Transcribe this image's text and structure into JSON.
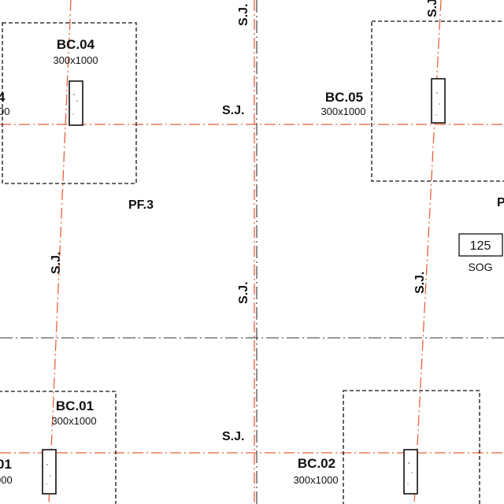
{
  "colors": {
    "gridline": "#e8623a",
    "joint": "#333333",
    "outline": "#111111",
    "column_fill": "#ffffff"
  },
  "footings": [
    {
      "code": "BC.04",
      "size": "300x1000"
    },
    {
      "code": "BC.05",
      "size": "300x1000"
    },
    {
      "code": "BC.01",
      "size": "300x1000"
    },
    {
      "code": "BC.02",
      "size": "300x1000"
    },
    {
      "code_partial": "4",
      "size_partial": "00"
    },
    {
      "code_partial": "01",
      "size_partial": "000"
    }
  ],
  "sawcut_joint_label": "S.J.",
  "pad_footings": [
    {
      "label": "PF.3"
    },
    {
      "label": "P"
    }
  ],
  "slab": {
    "thickness": "125",
    "type": "SOG"
  }
}
